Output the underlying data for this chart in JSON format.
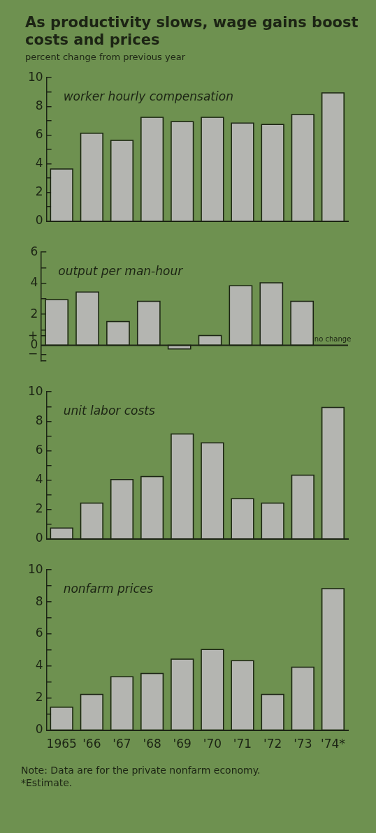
{
  "chart_data": [
    {
      "type": "bar",
      "title": "As productivity slows, wage gains boost costs and prices",
      "subtitle": "percent change from previous year",
      "categories": [
        "1965",
        "'66",
        "'67",
        "'68",
        "'69",
        "'70",
        "'71",
        "'72",
        "'73",
        "'74*"
      ],
      "values": [
        3.6,
        6.1,
        5.6,
        7.2,
        6.9,
        7.2,
        6.8,
        6.7,
        7.4,
        8.9
      ],
      "color": "#b4b5b1",
      "ylim": [
        0,
        10
      ],
      "yticks": [
        0,
        {
          "value": 1,
          "label": null
        },
        2,
        {
          "value": 3,
          "label": null
        },
        4,
        {
          "value": 5,
          "label": null
        },
        6,
        {
          "value": 7,
          "label": null
        },
        8,
        {
          "value": 9,
          "label": null
        },
        10
      ],
      "tick_labels": "y",
      "annotations": [
        "worker hourly compensation"
      ]
    },
    {
      "type": "bar",
      "categories": [
        "1965",
        "'66",
        "'67",
        "'68",
        "'69",
        "'70",
        "'71",
        "'72",
        "'73",
        "'74*"
      ],
      "values": [
        2.9,
        3.4,
        1.5,
        2.8,
        -0.2,
        0.6,
        3.8,
        4.0,
        2.8,
        0
      ],
      "color": "#b4b5b1",
      "ylim": [
        -1,
        6
      ],
      "yticks": [
        {
          "value": -1,
          "label": null
        },
        {
          "value": -0.6,
          "label": "−"
        },
        0,
        {
          "value": 0.6,
          "label": "+"
        },
        {
          "value": 1,
          "label": null
        },
        2,
        {
          "value": 3,
          "label": null
        },
        4,
        {
          "value": 5,
          "label": null
        },
        6
      ],
      "tick_labels": "y",
      "annotations": [
        "output per man-hour",
        {
          "text": "no change",
          "x": "'74*",
          "y": 0
        }
      ]
    },
    {
      "type": "bar",
      "categories": [
        "1965",
        "'66",
        "'67",
        "'68",
        "'69",
        "'70",
        "'71",
        "'72",
        "'73",
        "'74*"
      ],
      "values": [
        0.7,
        2.4,
        4.0,
        4.2,
        7.1,
        6.5,
        2.7,
        2.4,
        4.3,
        8.9
      ],
      "color": "#b4b5b1",
      "ylim": [
        0,
        10
      ],
      "yticks": [
        0,
        {
          "value": 1,
          "label": null
        },
        2,
        {
          "value": 3,
          "label": null
        },
        4,
        {
          "value": 5,
          "label": null
        },
        6,
        {
          "value": 7,
          "label": null
        },
        8,
        {
          "value": 9,
          "label": null
        },
        10
      ],
      "tick_labels": "y",
      "annotations": [
        "unit labor costs"
      ]
    },
    {
      "type": "bar",
      "categories": [
        "1965",
        "'66",
        "'67",
        "'68",
        "'69",
        "'70",
        "'71",
        "'72",
        "'73",
        "'74*"
      ],
      "values": [
        1.4,
        2.2,
        3.3,
        3.5,
        4.4,
        5.0,
        4.3,
        2.2,
        3.9,
        8.8
      ],
      "color": "#b4b5b1",
      "ylim": [
        0,
        10
      ],
      "yticks": [
        0,
        {
          "value": 1,
          "label": null
        },
        2,
        {
          "value": 3,
          "label": null
        },
        4,
        {
          "value": 5,
          "label": null
        },
        6,
        {
          "value": 7,
          "label": null
        },
        8,
        {
          "value": 9,
          "label": null
        },
        10
      ],
      "annotations": [
        "nonfarm prices",
        "Note:  Data are for the private nonfarm economy.",
        "*Estimate."
      ]
    }
  ]
}
